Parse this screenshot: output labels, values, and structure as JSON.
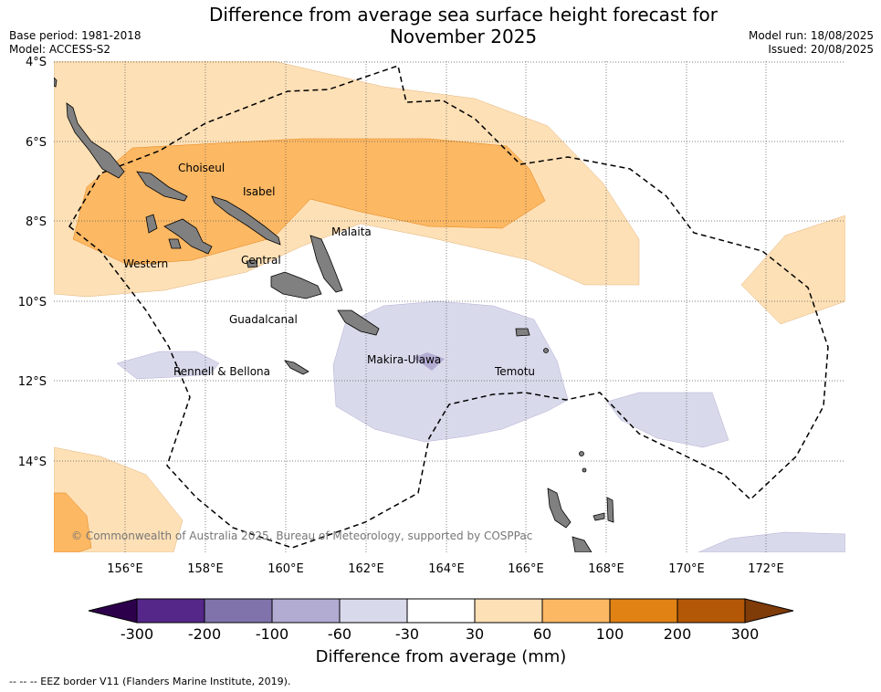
{
  "title_line1": "Difference from average sea surface height forecast for",
  "title_line2": "November 2025",
  "base_period": "Base period: 1981-2018",
  "model": "Model: ACCESS-S2",
  "model_run": "Model run: 18/08/2025",
  "issued": "Issued: 20/08/2025",
  "lat_labels": [
    "4°S",
    "6°S",
    "8°S",
    "10°S",
    "12°S",
    "14°S"
  ],
  "lon_labels": [
    "156°E",
    "158°E",
    "160°E",
    "162°E",
    "164°E",
    "166°E",
    "168°E",
    "170°E",
    "172°E"
  ],
  "provinces": [
    "Choiseul",
    "Isabel",
    "Malaita",
    "Western",
    "Central",
    "Guadalcanal",
    "Makira-Ulawa",
    "Rennell & Bellona",
    "Temotu"
  ],
  "attribution": "© Commonwealth of Australia 2025, Bureau of Meteorology, supported by COSPPac",
  "colorbar": {
    "title": "Difference from average (mm)",
    "ticks": [
      "-300",
      "-200",
      "-100",
      "-60",
      "-30",
      "30",
      "60",
      "100",
      "200",
      "300"
    ],
    "colors": [
      "#2d004b",
      "#542788",
      "#8073ac",
      "#b2abd2",
      "#d8daeb",
      "#ffffff",
      "#fee0b6",
      "#fdb863",
      "#e08214",
      "#b35806",
      "#7f3b08"
    ]
  },
  "footer": "--  --  -- EEZ border V11 (Flanders Marine Institute, 2019)."
}
